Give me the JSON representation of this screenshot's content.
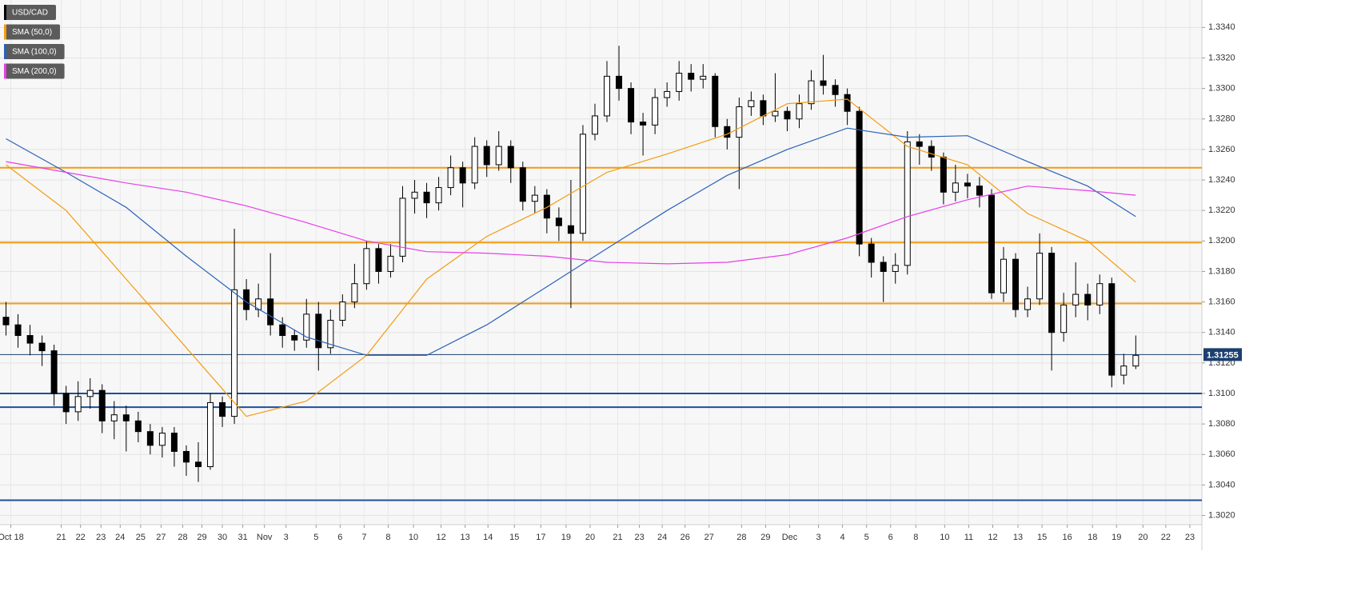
{
  "chart_data": {
    "type": "candlestick",
    "xlim": [
      -0.5,
      99.5
    ],
    "ylim": [
      1.3014,
      1.3358
    ],
    "grid": true,
    "yticks": [
      {
        "value": 1.302,
        "label": "1.3020"
      },
      {
        "value": 1.304,
        "label": "1.3040"
      },
      {
        "value": 1.306,
        "label": "1.3060"
      },
      {
        "value": 1.308,
        "label": "1.3080"
      },
      {
        "value": 1.31,
        "label": "1.3100"
      },
      {
        "value": 1.312,
        "label": "1.3120"
      },
      {
        "value": 1.314,
        "label": "1.3140"
      },
      {
        "value": 1.316,
        "label": "1.3160"
      },
      {
        "value": 1.318,
        "label": "1.3180"
      },
      {
        "value": 1.32,
        "label": "1.3200"
      },
      {
        "value": 1.322,
        "label": "1.3220"
      },
      {
        "value": 1.324,
        "label": "1.3240"
      },
      {
        "value": 1.326,
        "label": "1.3260"
      },
      {
        "value": 1.328,
        "label": "1.3280"
      },
      {
        "value": 1.33,
        "label": "1.3300"
      },
      {
        "value": 1.332,
        "label": "1.3320"
      },
      {
        "value": 1.334,
        "label": "1.3340"
      }
    ],
    "xticks": [
      {
        "value": 0.4,
        "label": "Oct 18"
      },
      {
        "value": 4.6,
        "label": "21"
      },
      {
        "value": 6.2,
        "label": "22"
      },
      {
        "value": 7.9,
        "label": "23"
      },
      {
        "value": 9.5,
        "label": "24"
      },
      {
        "value": 11.2,
        "label": "25"
      },
      {
        "value": 12.9,
        "label": "27"
      },
      {
        "value": 14.7,
        "label": "28"
      },
      {
        "value": 16.3,
        "label": "29"
      },
      {
        "value": 18.0,
        "label": "30"
      },
      {
        "value": 19.7,
        "label": "31"
      },
      {
        "value": 21.5,
        "label": "Nov"
      },
      {
        "value": 23.3,
        "label": "3"
      },
      {
        "value": 25.8,
        "label": "5"
      },
      {
        "value": 27.8,
        "label": "6"
      },
      {
        "value": 29.8,
        "label": "7"
      },
      {
        "value": 31.8,
        "label": "8"
      },
      {
        "value": 33.9,
        "label": "10"
      },
      {
        "value": 36.2,
        "label": "12"
      },
      {
        "value": 38.2,
        "label": "13"
      },
      {
        "value": 40.1,
        "label": "14"
      },
      {
        "value": 42.3,
        "label": "15"
      },
      {
        "value": 44.5,
        "label": "17"
      },
      {
        "value": 46.6,
        "label": "19"
      },
      {
        "value": 48.6,
        "label": "20"
      },
      {
        "value": 50.9,
        "label": "21"
      },
      {
        "value": 52.7,
        "label": "23"
      },
      {
        "value": 54.6,
        "label": "24"
      },
      {
        "value": 56.5,
        "label": "26"
      },
      {
        "value": 58.5,
        "label": "27"
      },
      {
        "value": 61.2,
        "label": "28"
      },
      {
        "value": 63.2,
        "label": "29"
      },
      {
        "value": 65.2,
        "label": "Dec"
      },
      {
        "value": 67.6,
        "label": "3"
      },
      {
        "value": 69.6,
        "label": "4"
      },
      {
        "value": 71.6,
        "label": "5"
      },
      {
        "value": 73.6,
        "label": "6"
      },
      {
        "value": 75.7,
        "label": "8"
      },
      {
        "value": 78.1,
        "label": "10"
      },
      {
        "value": 80.1,
        "label": "11"
      },
      {
        "value": 82.1,
        "label": "12"
      },
      {
        "value": 84.2,
        "label": "13"
      },
      {
        "value": 86.2,
        "label": "15"
      },
      {
        "value": 88.3,
        "label": "16"
      },
      {
        "value": 90.4,
        "label": "18"
      },
      {
        "value": 92.4,
        "label": "19"
      },
      {
        "value": 94.6,
        "label": "20"
      },
      {
        "value": 96.5,
        "label": "22"
      },
      {
        "value": 98.5,
        "label": "23"
      }
    ],
    "series": [
      {
        "name": "USD/CAD",
        "color": "#000000",
        "open": [
          1.315,
          1.3145,
          1.3138,
          1.3133,
          1.3128,
          1.31,
          1.3088,
          1.3098,
          1.3102,
          1.3082,
          1.3086,
          1.3082,
          1.3075,
          1.3066,
          1.3074,
          1.3062,
          1.3055,
          1.3052,
          1.3094,
          1.3085,
          1.3168,
          1.3155,
          1.3162,
          1.3145,
          1.3138,
          1.3135,
          1.3152,
          1.313,
          1.3148,
          1.316,
          1.3172,
          1.3195,
          1.318,
          1.319,
          1.3228,
          1.3232,
          1.3225,
          1.3235,
          1.3248,
          1.3238,
          1.3262,
          1.325,
          1.3262,
          1.3248,
          1.3226,
          1.323,
          1.3215,
          1.321,
          1.3205,
          1.327,
          1.3282,
          1.3308,
          1.33,
          1.3278,
          1.3276,
          1.3294,
          1.3298,
          1.331,
          1.3306,
          1.3308,
          1.3275,
          1.3268,
          1.3288,
          1.3292,
          1.3282,
          1.3285,
          1.328,
          1.329,
          1.3305,
          1.3302,
          1.3296,
          1.3285,
          1.3198,
          1.3186,
          1.318,
          1.3184,
          1.3265,
          1.3262,
          1.3255,
          1.3232,
          1.3238,
          1.3236,
          1.323,
          1.3166,
          1.3188,
          1.3155,
          1.3162,
          1.3192,
          1.314,
          1.3158,
          1.3165,
          1.3158,
          1.3172,
          1.3112,
          1.3118
        ],
        "high": [
          1.316,
          1.3152,
          1.3145,
          1.3138,
          1.3132,
          1.3105,
          1.3108,
          1.311,
          1.3106,
          1.3095,
          1.3092,
          1.3088,
          1.308,
          1.3078,
          1.3078,
          1.3066,
          1.3068,
          1.31,
          1.3098,
          1.3208,
          1.3175,
          1.3172,
          1.3192,
          1.315,
          1.3142,
          1.3162,
          1.316,
          1.3155,
          1.3165,
          1.3185,
          1.32,
          1.3198,
          1.3198,
          1.3236,
          1.324,
          1.3238,
          1.3242,
          1.3256,
          1.3252,
          1.3268,
          1.3266,
          1.3272,
          1.3266,
          1.3252,
          1.3236,
          1.3234,
          1.3222,
          1.324,
          1.3276,
          1.329,
          1.3318,
          1.3328,
          1.3304,
          1.3284,
          1.33,
          1.3304,
          1.3318,
          1.3316,
          1.3316,
          1.331,
          1.328,
          1.3294,
          1.3298,
          1.3296,
          1.331,
          1.3288,
          1.3296,
          1.3312,
          1.3322,
          1.3306,
          1.33,
          1.3288,
          1.3202,
          1.319,
          1.3192,
          1.3272,
          1.327,
          1.3266,
          1.3258,
          1.325,
          1.3244,
          1.3242,
          1.3234,
          1.3196,
          1.3192,
          1.317,
          1.3205,
          1.3196,
          1.3166,
          1.3186,
          1.3172,
          1.3178,
          1.3176,
          1.3126,
          1.3138
        ],
        "low": [
          1.3138,
          1.313,
          1.3125,
          1.3118,
          1.3092,
          1.308,
          1.3082,
          1.309,
          1.3074,
          1.307,
          1.3062,
          1.3068,
          1.306,
          1.3058,
          1.3052,
          1.3046,
          1.3042,
          1.305,
          1.3078,
          1.308,
          1.3148,
          1.315,
          1.3138,
          1.313,
          1.3128,
          1.313,
          1.3115,
          1.3126,
          1.3144,
          1.3156,
          1.3168,
          1.3172,
          1.3176,
          1.3186,
          1.3218,
          1.3215,
          1.322,
          1.323,
          1.3222,
          1.3234,
          1.3242,
          1.3246,
          1.3238,
          1.322,
          1.3218,
          1.3205,
          1.32,
          1.3156,
          1.32,
          1.3266,
          1.3278,
          1.3292,
          1.327,
          1.3256,
          1.327,
          1.3288,
          1.3292,
          1.3298,
          1.33,
          1.3268,
          1.326,
          1.3234,
          1.3282,
          1.3276,
          1.3278,
          1.3272,
          1.3274,
          1.3286,
          1.3296,
          1.3288,
          1.3276,
          1.319,
          1.3176,
          1.316,
          1.3172,
          1.3178,
          1.325,
          1.3246,
          1.3224,
          1.3226,
          1.3228,
          1.3222,
          1.3162,
          1.316,
          1.315,
          1.315,
          1.3158,
          1.3115,
          1.3134,
          1.315,
          1.3148,
          1.3152,
          1.3104,
          1.3106,
          1.3116
        ],
        "close": [
          1.3145,
          1.3138,
          1.3133,
          1.3128,
          1.31,
          1.3088,
          1.3098,
          1.3102,
          1.3082,
          1.3086,
          1.3082,
          1.3075,
          1.3066,
          1.3074,
          1.3062,
          1.3055,
          1.3052,
          1.3094,
          1.3085,
          1.3168,
          1.3155,
          1.3162,
          1.3145,
          1.3138,
          1.3135,
          1.3152,
          1.313,
          1.3148,
          1.316,
          1.3172,
          1.3195,
          1.318,
          1.319,
          1.3228,
          1.3232,
          1.3225,
          1.3235,
          1.3248,
          1.3238,
          1.3262,
          1.325,
          1.3262,
          1.3248,
          1.3226,
          1.323,
          1.3215,
          1.321,
          1.3205,
          1.327,
          1.3282,
          1.3308,
          1.33,
          1.3278,
          1.3276,
          1.3294,
          1.3298,
          1.331,
          1.3306,
          1.3308,
          1.3275,
          1.3268,
          1.3288,
          1.3292,
          1.3282,
          1.3285,
          1.328,
          1.329,
          1.3305,
          1.3302,
          1.3296,
          1.3285,
          1.3198,
          1.3186,
          1.318,
          1.3184,
          1.3265,
          1.3262,
          1.3255,
          1.3232,
          1.3238,
          1.3236,
          1.323,
          1.3166,
          1.3188,
          1.3155,
          1.3162,
          1.3192,
          1.314,
          1.3158,
          1.3165,
          1.3158,
          1.3172,
          1.3112,
          1.3118,
          1.3125
        ]
      }
    ],
    "overlay_x": [
      0,
      5,
      10,
      15,
      20,
      25,
      30,
      35,
      40,
      45,
      50,
      55,
      60,
      65,
      70,
      75,
      80,
      85,
      90,
      94
    ],
    "overlays": [
      {
        "name": "SMA (50,0)",
        "color": "#f39c12",
        "values": [
          1.325,
          1.322,
          1.3175,
          1.313,
          1.3085,
          1.3095,
          1.3125,
          1.3175,
          1.3203,
          1.3222,
          1.3245,
          1.3257,
          1.327,
          1.329,
          1.3293,
          1.3262,
          1.325,
          1.3218,
          1.32,
          1.3173
        ]
      },
      {
        "name": "SMA (100,0)",
        "color": "#2a62b8",
        "values": [
          1.3267,
          1.3245,
          1.3222,
          1.319,
          1.316,
          1.3137,
          1.3125,
          1.3125,
          1.3145,
          1.317,
          1.3195,
          1.322,
          1.3243,
          1.326,
          1.3274,
          1.3268,
          1.3269,
          1.3252,
          1.3236,
          1.3216
        ]
      },
      {
        "name": "SMA (200,0)",
        "color": "#e83ee8",
        "values": [
          1.3252,
          1.3245,
          1.3238,
          1.3232,
          1.3223,
          1.3212,
          1.32,
          1.3193,
          1.3192,
          1.319,
          1.3186,
          1.3185,
          1.3186,
          1.3191,
          1.3202,
          1.3216,
          1.3227,
          1.3236,
          1.3233,
          1.323
        ]
      }
    ],
    "levels": [
      {
        "value": 1.3248,
        "color": "#f39c12"
      },
      {
        "value": 1.3199,
        "color": "#f39c12"
      },
      {
        "value": 1.3159,
        "color": "#f39c12"
      },
      {
        "value": 1.31,
        "color": "#1c4f9c"
      },
      {
        "value": 1.3091,
        "color": "#1c4f9c"
      },
      {
        "value": 1.303,
        "color": "#1c4f9c"
      }
    ],
    "last_price": {
      "value": 1.31255,
      "color": "#1c3f6e"
    }
  }
}
